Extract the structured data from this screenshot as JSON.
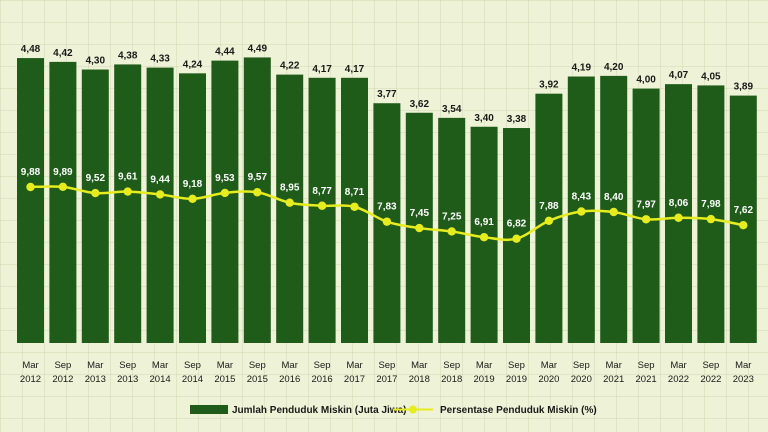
{
  "chart_data": {
    "type": "bar",
    "categories": [
      [
        "Mar",
        "2012"
      ],
      [
        "Sep",
        "2012"
      ],
      [
        "Mar",
        "2013"
      ],
      [
        "Sep",
        "2013"
      ],
      [
        "Mar",
        "2014"
      ],
      [
        "Sep",
        "2014"
      ],
      [
        "Mar",
        "2015"
      ],
      [
        "Sep",
        "2015"
      ],
      [
        "Mar",
        "2016"
      ],
      [
        "Sep",
        "2016"
      ],
      [
        "Mar",
        "2017"
      ],
      [
        "Sep",
        "2017"
      ],
      [
        "Mar",
        "2018"
      ],
      [
        "Sep",
        "2018"
      ],
      [
        "Mar",
        "2019"
      ],
      [
        "Sep",
        "2019"
      ],
      [
        "Mar",
        "2020"
      ],
      [
        "Sep",
        "2020"
      ],
      [
        "Mar",
        "2021"
      ],
      [
        "Sep",
        "2021"
      ],
      [
        "Mar",
        "2022"
      ],
      [
        "Sep",
        "2022"
      ],
      [
        "Mar",
        "2023"
      ]
    ],
    "series": [
      {
        "name": "Jumlah Penduduk Miskin (Juta Jiwa)",
        "kind": "bar",
        "color": "#1f5c1a",
        "values": [
          4.48,
          4.42,
          4.3,
          4.38,
          4.33,
          4.24,
          4.44,
          4.49,
          4.22,
          4.17,
          4.17,
          3.77,
          3.62,
          3.54,
          3.4,
          3.38,
          3.92,
          4.19,
          4.2,
          4.0,
          4.07,
          4.05,
          3.89
        ],
        "labels": [
          "4,48",
          "4,42",
          "4,30",
          "4,38",
          "4,33",
          "4,24",
          "4,44",
          "4,49",
          "4,22",
          "4,17",
          "4,17",
          "3,77",
          "3,62",
          "3,54",
          "3,40",
          "3,38",
          "3,92",
          "4,19",
          "4,20",
          "4,00",
          "4,07",
          "4,05",
          "3,89"
        ]
      },
      {
        "name": "Persentase Penduduk Miskin (%)",
        "kind": "line",
        "color": "#e6ec1e",
        "values": [
          9.88,
          9.89,
          9.52,
          9.61,
          9.44,
          9.18,
          9.53,
          9.57,
          8.95,
          8.77,
          8.71,
          7.83,
          7.45,
          7.25,
          6.91,
          6.82,
          7.88,
          8.43,
          8.4,
          7.97,
          8.06,
          7.98,
          7.62
        ],
        "labels": [
          "9,88",
          "9,89",
          "9,52",
          "9,61",
          "9,44",
          "9,18",
          "9,53",
          "9,57",
          "8,95",
          "8,77",
          "8,71",
          "7,83",
          "7,45",
          "7,25",
          "6,91",
          "6,82",
          "7,88",
          "8,43",
          "8,40",
          "7,97",
          "8,06",
          "7,98",
          "7,62"
        ]
      }
    ],
    "ylim": [
      0,
      4.6
    ],
    "grid": true,
    "legend": "bottom"
  },
  "colors": {
    "bar": "#1f5c1a",
    "line": "#e6ec1e",
    "background": "#eef2d6"
  }
}
